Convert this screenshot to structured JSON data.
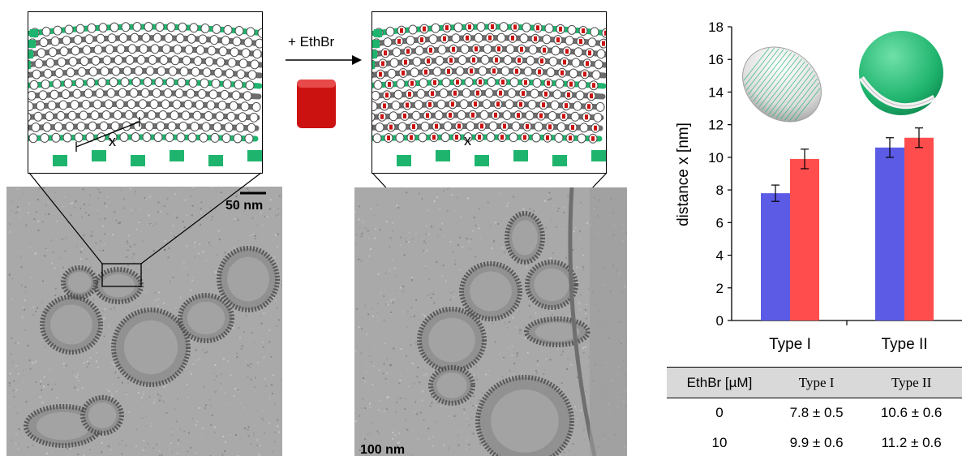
{
  "figure": {
    "arrow_label": "+ EthBr",
    "left": {
      "scale_bar": "50 nm",
      "distance_label": "x"
    },
    "right": {
      "scale_bar": "100 nm",
      "distance_label": "x"
    }
  },
  "colors": {
    "series_0": "#5b5be6",
    "series_10": "#ff4d4d",
    "dna_green": "#1fb46e",
    "dna_gray": "#9a9a9a",
    "ethbr_red": "#cc1111",
    "em_background": "#a9a9a9"
  },
  "chart_data": {
    "type": "bar",
    "categories": [
      "Type I",
      "Type II"
    ],
    "ylabel": "distance x [nm]",
    "ylim": [
      0,
      18
    ],
    "yticks": [
      0,
      2,
      4,
      6,
      8,
      10,
      12,
      14,
      16,
      18
    ],
    "grid": false,
    "series": [
      {
        "ethbr": 0,
        "values": [
          7.8,
          10.6
        ],
        "errors": [
          0.5,
          0.6
        ],
        "color": "#5b5be6"
      },
      {
        "ethbr": 10,
        "values": [
          9.9,
          11.2
        ],
        "errors": [
          0.6,
          0.6
        ],
        "color": "#ff4d4d"
      }
    ]
  },
  "table": {
    "headers": [
      "EthBr [µM]",
      "Type I",
      "Type II"
    ],
    "rows": [
      [
        "0",
        "7.8 ± 0.5",
        "10.6 ± 0.6"
      ],
      [
        "10",
        "9.9 ± 0.6",
        "11.2 ± 0.6"
      ]
    ]
  }
}
